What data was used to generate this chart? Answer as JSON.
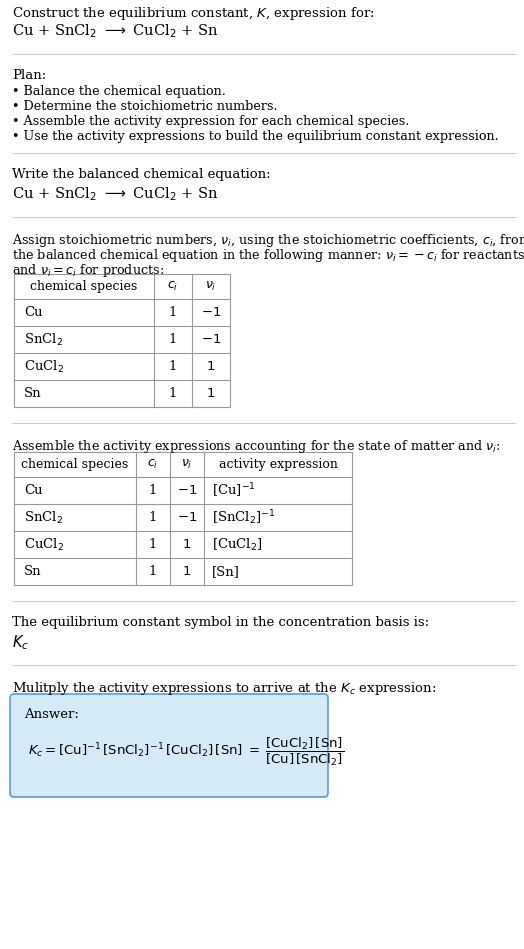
{
  "bg_color": "#ffffff",
  "text_color": "#000000",
  "title_line1": "Construct the equilibrium constant, $K$, expression for:",
  "title_line2": "Cu + SnCl$_2$ $\\longrightarrow$ CuCl$_2$ + Sn",
  "plan_header": "Plan:",
  "plan_items": [
    "• Balance the chemical equation.",
    "• Determine the stoichiometric numbers.",
    "• Assemble the activity expression for each chemical species.",
    "• Use the activity expressions to build the equilibrium constant expression."
  ],
  "balanced_header": "Write the balanced chemical equation:",
  "balanced_eq": "Cu + SnCl$_2$ $\\longrightarrow$ CuCl$_2$ + Sn",
  "stoich_intro1": "Assign stoichiometric numbers, $\\nu_i$, using the stoichiometric coefficients, $c_i$, from",
  "stoich_intro2": "the balanced chemical equation in the following manner: $\\nu_i = -c_i$ for reactants",
  "stoich_intro3": "and $\\nu_i = c_i$ for products:",
  "table1_headers": [
    "chemical species",
    "$c_i$",
    "$\\nu_i$"
  ],
  "table1_rows": [
    [
      "Cu",
      "1",
      "$-1$"
    ],
    [
      "SnCl$_2$",
      "1",
      "$-1$"
    ],
    [
      "CuCl$_2$",
      "1",
      "$1$"
    ],
    [
      "Sn",
      "1",
      "$1$"
    ]
  ],
  "activity_intro": "Assemble the activity expressions accounting for the state of matter and $\\nu_i$:",
  "table2_headers": [
    "chemical species",
    "$c_i$",
    "$\\nu_i$",
    "activity expression"
  ],
  "table2_rows": [
    [
      "Cu",
      "1",
      "$-1$",
      "[Cu]$^{-1}$"
    ],
    [
      "SnCl$_2$",
      "1",
      "$-1$",
      "[SnCl$_2$]$^{-1}$"
    ],
    [
      "CuCl$_2$",
      "1",
      "$1$",
      "[CuCl$_2$]"
    ],
    [
      "Sn",
      "1",
      "$1$",
      "[Sn]"
    ]
  ],
  "kc_intro": "The equilibrium constant symbol in the concentration basis is:",
  "kc_symbol": "$K_c$",
  "multiply_intro": "Mulitply the activity expressions to arrive at the $K_c$ expression:",
  "answer_box_color": "#d4eaf7",
  "answer_border_color": "#5b9bd5",
  "answer_label": "Answer:",
  "answer_line1": "$K_c = [\\mathrm{Cu}]^{-1}\\, [\\mathrm{SnCl_2}]^{-1}\\, [\\mathrm{CuCl_2}]\\, [\\mathrm{Sn}]\\; =\\; \\dfrac{[\\mathrm{CuCl_2}]\\,[\\mathrm{Sn}]}{[\\mathrm{Cu}]\\,[\\mathrm{SnCl_2}]}$"
}
